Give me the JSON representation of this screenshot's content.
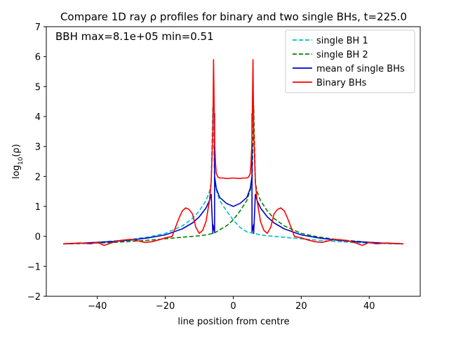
{
  "chart_data": {
    "type": "line",
    "title": "Compare 1D ray ρ profiles for binary and two single BHs, t=225.0",
    "xlabel": "line position from centre",
    "ylabel": "log10(ρ)",
    "xlim": [
      -55,
      55
    ],
    "ylim": [
      -2,
      7
    ],
    "xticks": [
      -40,
      -20,
      0,
      20,
      40
    ],
    "yticks": [
      -2,
      -1,
      0,
      1,
      2,
      3,
      4,
      5,
      6,
      7
    ],
    "annotation": "BBH max=8.1e+05 min=0.51",
    "legend_position": "upper right",
    "grid": false,
    "series": [
      {
        "name": "single BH 1",
        "color": "#00bfbf",
        "style": "dashed",
        "x": [
          -50,
          -45,
          -40,
          -35,
          -30,
          -25,
          -20,
          -15,
          -12,
          -10,
          -8,
          -7,
          -6.5,
          -6,
          -5.5,
          -5,
          -4,
          -2,
          0,
          2,
          4,
          6,
          8,
          10,
          15,
          20,
          25,
          30,
          35,
          40,
          45,
          50
        ],
        "y": [
          -0.25,
          -0.23,
          -0.2,
          -0.15,
          -0.1,
          -0.02,
          0.1,
          0.35,
          0.6,
          0.85,
          1.2,
          1.5,
          1.8,
          4.35,
          1.8,
          1.55,
          1.2,
          0.85,
          0.55,
          0.3,
          0.15,
          0.1,
          0.05,
          0.02,
          -0.03,
          -0.08,
          -0.13,
          -0.17,
          -0.2,
          -0.22,
          -0.24,
          -0.25
        ]
      },
      {
        "name": "single BH 2",
        "color": "#008000",
        "style": "dashed",
        "x": [
          -50,
          -45,
          -40,
          -35,
          -30,
          -25,
          -20,
          -15,
          -10,
          -8,
          -6,
          -5.8,
          -5,
          -4,
          -2,
          0,
          2,
          4,
          5,
          5.5,
          6,
          6.5,
          7,
          8,
          10,
          12,
          15,
          20,
          25,
          30,
          35,
          40,
          45,
          50
        ],
        "y": [
          -0.25,
          -0.24,
          -0.22,
          -0.2,
          -0.17,
          -0.13,
          -0.08,
          -0.03,
          0.02,
          0.05,
          0.1,
          0.1,
          0.15,
          0.22,
          0.35,
          0.55,
          0.85,
          1.2,
          1.55,
          1.8,
          4.35,
          1.8,
          1.5,
          1.2,
          0.85,
          0.6,
          0.35,
          0.1,
          -0.02,
          -0.1,
          -0.15,
          -0.2,
          -0.23,
          -0.25
        ]
      },
      {
        "name": "mean of single BHs",
        "color": "#0000cc",
        "style": "solid",
        "x": [
          -50,
          -45,
          -40,
          -35,
          -30,
          -25,
          -20,
          -15,
          -12,
          -10,
          -8,
          -7,
          -6.5,
          -6,
          -6,
          -5.5,
          -5.5,
          -5.5,
          -5,
          -4,
          -2,
          0,
          2,
          4,
          5,
          5.5,
          5.5,
          5.5,
          6,
          6,
          6.5,
          7,
          8,
          10,
          12,
          15,
          20,
          25,
          30,
          35,
          40,
          45,
          50
        ],
        "y": [
          -0.25,
          -0.23,
          -0.2,
          -0.17,
          -0.12,
          -0.05,
          0.05,
          0.25,
          0.45,
          0.65,
          0.95,
          1.2,
          1.4,
          0.1,
          0.4,
          0.15,
          4.1,
          2.0,
          1.6,
          1.3,
          1.1,
          1.0,
          1.1,
          1.3,
          1.6,
          2.0,
          4.1,
          0.15,
          0.4,
          0.1,
          1.4,
          1.2,
          0.95,
          0.65,
          0.45,
          0.25,
          0.05,
          -0.05,
          -0.12,
          -0.17,
          -0.2,
          -0.23,
          -0.25
        ]
      },
      {
        "name": "Binary BHs",
        "color": "#ff0000",
        "style": "solid",
        "x": [
          -50,
          -45,
          -42,
          -40,
          -38,
          -36,
          -34,
          -32,
          -30,
          -28,
          -26,
          -24,
          -22,
          -20,
          -18,
          -17,
          -16,
          -15,
          -14,
          -13,
          -12,
          -11,
          -10,
          -9,
          -8,
          -7,
          -6.5,
          -6,
          -5.8,
          -5.5,
          -5.2,
          -5,
          -4.5,
          -4,
          -3,
          -2,
          0,
          2,
          3,
          4,
          4.5,
          5,
          5.2,
          5.5,
          5.8,
          6,
          6.5,
          7,
          8,
          9,
          10,
          11,
          12,
          13,
          14,
          15,
          16,
          17,
          18,
          20,
          22,
          24,
          26,
          28,
          30,
          32,
          34,
          36,
          38,
          40,
          42,
          45,
          50
        ],
        "y": [
          -0.25,
          -0.22,
          -0.25,
          -0.2,
          -0.3,
          -0.22,
          -0.15,
          -0.12,
          -0.1,
          -0.15,
          -0.2,
          -0.18,
          -0.12,
          -0.05,
          0.0,
          0.3,
          0.6,
          0.85,
          0.95,
          0.9,
          0.75,
          0.3,
          0.1,
          0.2,
          0.5,
          1.2,
          1.8,
          3.5,
          5.9,
          3.2,
          2.4,
          2.1,
          1.98,
          1.95,
          1.95,
          1.93,
          1.95,
          1.93,
          1.95,
          1.95,
          1.98,
          2.1,
          2.4,
          3.2,
          5.9,
          3.5,
          1.8,
          1.2,
          0.5,
          0.2,
          0.1,
          0.3,
          0.75,
          0.9,
          0.95,
          0.85,
          0.6,
          0.3,
          0.0,
          -0.05,
          -0.12,
          -0.18,
          -0.2,
          -0.15,
          -0.1,
          -0.12,
          -0.15,
          -0.22,
          -0.3,
          -0.2,
          -0.25,
          -0.22,
          -0.25
        ]
      }
    ]
  }
}
